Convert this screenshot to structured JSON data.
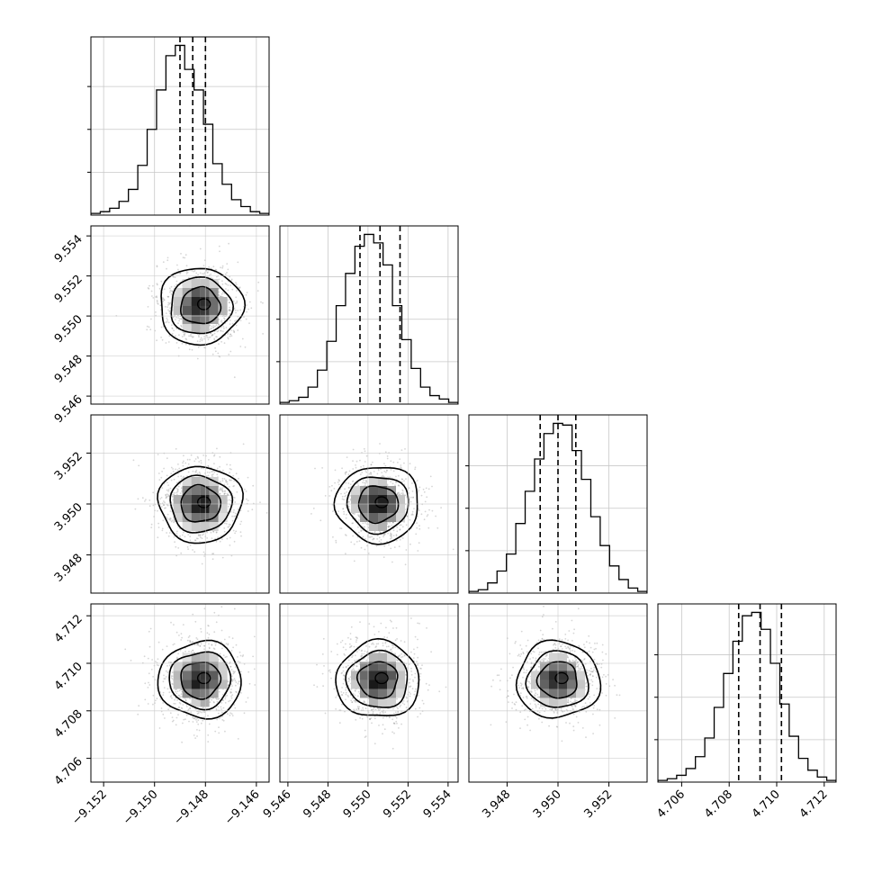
{
  "chart_data": {
    "type": "corner",
    "title": "",
    "grid": true,
    "n_params": 4,
    "params": [
      {
        "range": [
          -9.1525,
          -9.1455
        ],
        "ticks": [
          -9.152,
          -9.15,
          -9.148,
          -9.146
        ],
        "tick_labels": [
          "−9.152",
          "−9.150",
          "−9.148",
          "−9.146"
        ],
        "quantiles": [
          -9.149,
          -9.1485,
          -9.148
        ],
        "hist": [
          1,
          2,
          4,
          8,
          15,
          29,
          50,
          73,
          93,
          99,
          85,
          73,
          53,
          30,
          18,
          9,
          5,
          2,
          1
        ]
      },
      {
        "range": [
          9.5456,
          9.5545
        ],
        "ticks": [
          9.546,
          9.548,
          9.55,
          9.552,
          9.554
        ],
        "tick_labels": [
          "9.546",
          "9.548",
          "9.550",
          "9.552",
          "9.554"
        ],
        "quantiles": [
          9.5496,
          9.5506,
          9.5516
        ],
        "hist": [
          1,
          2,
          4,
          10,
          20,
          37,
          58,
          77,
          93,
          100,
          95,
          82,
          58,
          38,
          21,
          10,
          5,
          3,
          1
        ]
      },
      {
        "range": [
          3.9465,
          3.9535
        ],
        "ticks": [
          3.948,
          3.95,
          3.952
        ],
        "tick_labels": [
          "3.948",
          "3.950",
          "3.952"
        ],
        "quantiles": [
          3.9493,
          3.95,
          3.9507
        ],
        "hist": [
          1,
          2,
          6,
          13,
          23,
          41,
          60,
          79,
          94,
          100,
          99,
          84,
          67,
          45,
          28,
          16,
          8,
          3,
          1
        ]
      },
      {
        "range": [
          4.705,
          4.7125
        ],
        "ticks": [
          4.706,
          4.708,
          4.71,
          4.712
        ],
        "tick_labels": [
          "4.706",
          "4.708",
          "4.710",
          "4.712"
        ],
        "quantiles": [
          4.7084,
          4.7093,
          4.7102
        ],
        "hist": [
          1,
          2,
          4,
          8,
          15,
          26,
          44,
          64,
          83,
          98,
          100,
          90,
          70,
          46,
          27,
          14,
          7,
          3,
          1
        ]
      }
    ],
    "pairs": [
      {
        "row": 1,
        "col": 0,
        "center": [
          -9.1482,
          9.5505
        ]
      },
      {
        "row": 2,
        "col": 0,
        "center": [
          -9.1482,
          3.95
        ]
      },
      {
        "row": 2,
        "col": 1,
        "center": [
          9.5505,
          3.95
        ]
      },
      {
        "row": 3,
        "col": 0,
        "center": [
          -9.1482,
          4.7093
        ]
      },
      {
        "row": 3,
        "col": 1,
        "center": [
          9.5505,
          4.7093
        ]
      },
      {
        "row": 3,
        "col": 2,
        "center": [
          3.95,
          4.7093
        ]
      }
    ],
    "colors": {
      "line": "#000000",
      "grid": "#c8c8c8",
      "points": "#8a8a8a"
    }
  }
}
